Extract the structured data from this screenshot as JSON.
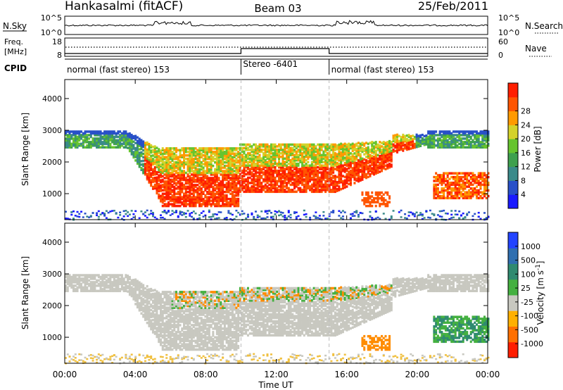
{
  "header": {
    "station": "Hankasalmi (fitACF)",
    "beam": "Beam 03",
    "date": "25/Feb/2011"
  },
  "left_labels": {
    "nsky": "N.Sky",
    "freq": "Freq.",
    "freq_unit": "[MHz]",
    "cpid": "CPID"
  },
  "right_labels": {
    "nsearch": "N.Search",
    "nave": "Nave"
  },
  "ticks": {
    "noise_left_top": "10^5",
    "noise_left_bottom": "10^0",
    "noise_right_top": "10^5",
    "noise_right_bottom": "10^0",
    "freq_left_top": "18",
    "freq_left_bottom": "8",
    "freq_right_top": "60",
    "freq_right_bottom": "0"
  },
  "cpid_segments": [
    {
      "label": "normal (fast stereo) 153",
      "start_hour": 0,
      "end_hour": 10
    },
    {
      "label": "Stereo -6401",
      "start_hour": 10,
      "end_hour": 15
    },
    {
      "label": "normal (fast stereo) 153",
      "start_hour": 15,
      "end_hour": 24
    }
  ],
  "chart_data": [
    {
      "type": "heatmap",
      "quantity": "power",
      "ylabel": "Slant Range [km]",
      "yticks": [
        "1000",
        "2000",
        "3000",
        "4000"
      ],
      "ylim": [
        180,
        4600
      ],
      "colorbar": {
        "label": "Power [dB]",
        "ticks": [
          "4",
          "8",
          "12",
          "16",
          "20",
          "24",
          "28"
        ],
        "range": [
          0,
          32
        ],
        "colors": [
          "#1a1aff",
          "#2850c8",
          "#3a8a8a",
          "#3ea04e",
          "#66c42e",
          "#d4d22a",
          "#ff9a00",
          "#ff5500",
          "#ff1e00"
        ]
      }
    },
    {
      "type": "heatmap",
      "quantity": "velocity",
      "ylabel": "Slant Range [km]",
      "yticks": [
        "1000",
        "2000",
        "3000",
        "4000"
      ],
      "ylim": [
        180,
        4600
      ],
      "colorbar": {
        "label": "Velocity [m s",
        "label_sup": "-1",
        "label_end": "]",
        "ticks": [
          "1000",
          "500",
          "100",
          "25",
          "-25",
          "-100",
          "-500",
          "-1000"
        ],
        "colors": [
          "#2244ff",
          "#2f6fb0",
          "#2f8a70",
          "#44b040",
          "#c8c8c0",
          "#ffb000",
          "#ff7000",
          "#ff1e00"
        ]
      }
    }
  ],
  "time_axis": {
    "xlabel": "Time UT",
    "ticks": [
      "00:00",
      "04:00",
      "08:00",
      "12:00",
      "16:00",
      "20:00",
      "00:00"
    ],
    "xlim_hours": [
      0,
      24
    ]
  }
}
